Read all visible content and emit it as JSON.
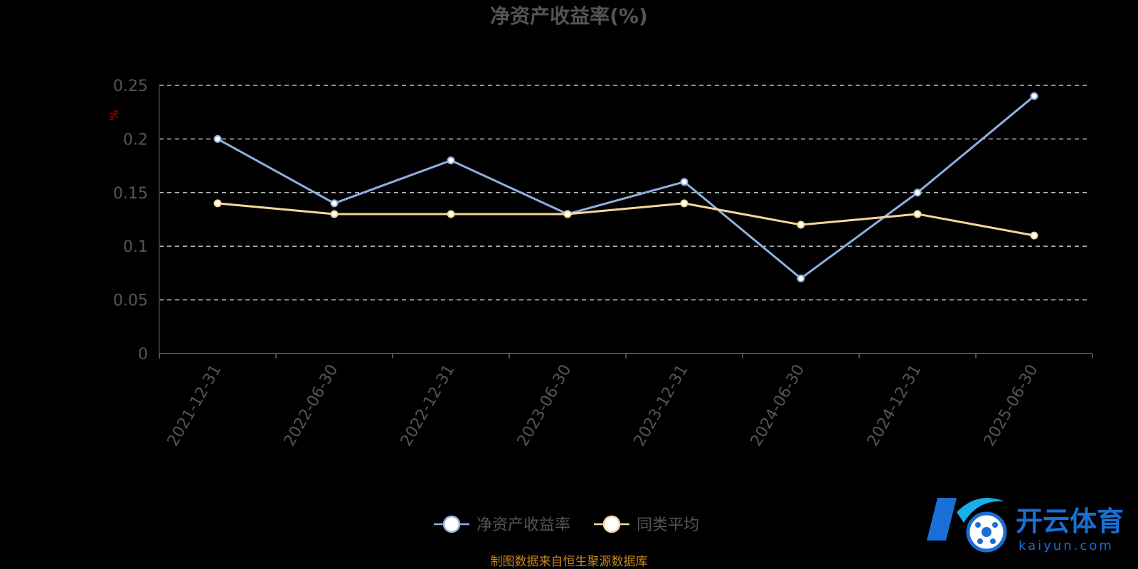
{
  "chart_data": {
    "type": "line",
    "title": "净资产收益率(%)",
    "unit_label": "%",
    "x": [
      "2021-12-31",
      "2022-06-30",
      "2022-12-31",
      "2023-06-30",
      "2023-12-31",
      "2024-06-30",
      "2024-12-31",
      "2025-06-30"
    ],
    "series": [
      {
        "name": "净资产收益率",
        "color": "#8fb0e0",
        "values": [
          0.2,
          0.14,
          0.18,
          0.13,
          0.16,
          0.07,
          0.15,
          0.24
        ]
      },
      {
        "name": "同类平均",
        "color": "#f5d79a",
        "values": [
          0.14,
          0.13,
          0.13,
          0.13,
          0.14,
          0.12,
          0.13,
          0.11
        ]
      }
    ],
    "ylim": [
      0,
      0.25
    ],
    "yticks": [
      "0",
      "0.05",
      "0.1",
      "0.15",
      "0.2",
      "0.25"
    ],
    "grid": true,
    "legend_position": "bottom-center"
  },
  "source_note": "制图数据来自恒生聚源数据库",
  "watermark": {
    "brand": "开云体育",
    "sub": "kaiyun.com",
    "icon": "kaiyun-logo-icon"
  }
}
